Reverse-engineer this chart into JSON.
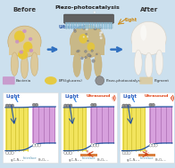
{
  "bg_top": "#cce0ee",
  "bg_bottom": "#ffffff",
  "tooth_dirty_color": "#dcc99a",
  "tooth_mid_color": "#c8b888",
  "tooth_clean_color": "#f4f1ec",
  "tooth_edge_dirty": "#c8aa70",
  "tooth_edge_clean": "#dcd8d0",
  "bacteria_color": "#c890c8",
  "eps_color": "#e8c830",
  "catalyst_color": "#909090",
  "brush_color": "#686868",
  "arrow_blue": "#3070c0",
  "before_label": "Before",
  "after_label": "After",
  "piezo_label": "Piezo-photocatalysis",
  "ultrasound_label": "Ultrasound",
  "light_label": "Light",
  "legend_bacteria": "Bacteria",
  "legend_eps": "EPS(glucans)",
  "legend_catalyst": "Piezo-photocatalyst",
  "legend_pigment": "Pigment",
  "gcn_color": "#f0e040",
  "gcn_line_color": "#c8b820",
  "bi_color": "#d090d8",
  "bi_line_color": "#a060a8",
  "band_color": "#2050a0",
  "electron_fill": "#909090",
  "hole_fill": "#ffffff",
  "particle_fill": "#c0c0c0",
  "light_text_color": "#3060c0",
  "ultrasound_text_color": "#e04010",
  "interface_color": "#5090b0",
  "material_color": "#606060",
  "ir_color": "#cc4010",
  "panel_border": "#dddddd",
  "gcn_label": "g-C₃N₄₋ₓ",
  "bi_label": "Bi₂O₃₋ᵧ",
  "interface_label": "Interface"
}
